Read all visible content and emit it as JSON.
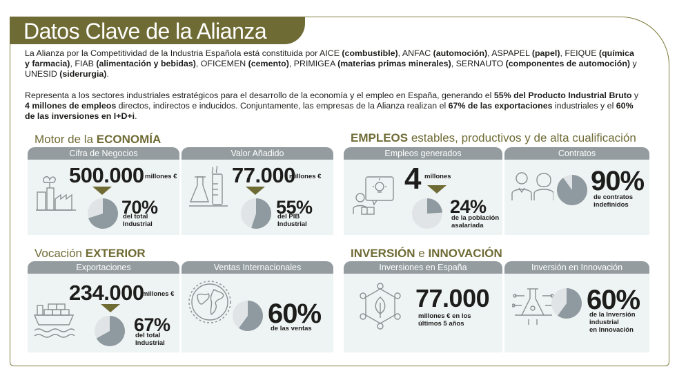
{
  "title": "Datos Clave de la Alianza",
  "intro": {
    "p1": [
      {
        "t": "La Alianza por la Competitividad de la Industria Española está constituida por AICE ",
        "b": false
      },
      {
        "t": "(combustible)",
        "b": true
      },
      {
        "t": ", ANFAC ",
        "b": false
      },
      {
        "t": "(automoción)",
        "b": true
      },
      {
        "t": ", ASPAPEL ",
        "b": false
      },
      {
        "t": "(papel)",
        "b": true
      },
      {
        "t": ", FEIQUE ",
        "b": false
      },
      {
        "t": "(química y farmacia)",
        "b": true
      },
      {
        "t": ", FIAB ",
        "b": false
      },
      {
        "t": "(alimentación y bebidas)",
        "b": true
      },
      {
        "t": ", OFICEMEN ",
        "b": false
      },
      {
        "t": "(cemento)",
        "b": true
      },
      {
        "t": ", PRIMIGEA ",
        "b": false
      },
      {
        "t": "(materias primas minerales)",
        "b": true
      },
      {
        "t": ", SERNAUTO ",
        "b": false
      },
      {
        "t": "(componentes de automoción)",
        "b": true
      },
      {
        "t": " y UNESID ",
        "b": false
      },
      {
        "t": "(siderurgia)",
        "b": true
      },
      {
        "t": ".",
        "b": false
      }
    ],
    "p2": [
      {
        "t": "Representa a los sectores industriales estratégicos para el desarrollo de la economía y el empleo en España, generando el ",
        "b": false
      },
      {
        "t": "55% del Producto Industrial Bruto",
        "b": true
      },
      {
        "t": " y ",
        "b": false
      },
      {
        "t": "4 millones de empleos",
        "b": true
      },
      {
        "t": " directos, indirectos e inducidos. Conjuntamente, las empresas de la Alianza realizan el ",
        "b": false
      },
      {
        "t": "67% de las exportaciones",
        "b": true
      },
      {
        "t": " industriales y el ",
        "b": false
      },
      {
        "t": "60% de las inversiones en I+D+i",
        "b": true
      },
      {
        "t": ".",
        "b": false
      }
    ]
  },
  "economia": {
    "title_a": "Motor de la ",
    "title_b": "ECONOMÍA",
    "cifra": {
      "tab": "Cifra de Negocios",
      "value": "500.000",
      "unit": "millones €",
      "pct": "70%",
      "pct_value": 70,
      "sub1": "del total",
      "sub2": "Industrial",
      "icon": "factory-icon"
    },
    "valor": {
      "tab": "Valor Añadido",
      "value": "77.000",
      "unit": "millones €",
      "pct": "55%",
      "pct_value": 55,
      "sub1": "del PIB",
      "sub2": "Industrial",
      "icon": "lab-flask-icon"
    }
  },
  "empleos": {
    "title_a": "EMPLEOS",
    "title_b": " estables, productivos y de alta cualificación",
    "generados": {
      "tab": "Empleos generados",
      "value": "4",
      "unit": "millones",
      "pct": "24%",
      "pct_value": 24,
      "sub1": "de la población",
      "sub2": "asalariada",
      "icon": "idea-worker-icon"
    },
    "contratos": {
      "tab": "Contratos",
      "pct": "90%",
      "pct_value": 90,
      "sub1": "de contratos",
      "sub2": "indefinidos",
      "icon": "people-icon"
    }
  },
  "exterior": {
    "title_a": "Vocación ",
    "title_b": "EXTERIOR",
    "exportaciones": {
      "tab": "Exportaciones",
      "value": "234.000",
      "unit": "millones €",
      "pct": "67%",
      "pct_value": 67,
      "sub1": "del total",
      "sub2": "Industrial",
      "icon": "cargo-ship-icon"
    },
    "ventas": {
      "tab": "Ventas Internacionales",
      "pct": "60%",
      "pct_value": 60,
      "sub1": "de las ventas",
      "icon": "globe-icon"
    }
  },
  "inversion": {
    "title_a": "INVERSIÓN",
    "title_mid": " e ",
    "title_b": "INNOVACIÓN",
    "espana": {
      "tab": "Inversiones en España",
      "value": "77.000",
      "sub1": "millones € en los",
      "sub2": "últimos 5 años",
      "icon": "network-leaf-icon"
    },
    "innovacion": {
      "tab": "Inversión en Innovación",
      "pct": "60%",
      "pct_value": 60,
      "sub1": "de la Inversión",
      "sub2": "industrial",
      "sub3": "en Innovación",
      "icon": "circuit-flask-icon"
    }
  },
  "colors": {
    "olive": "#6f6b35",
    "tab_grey": "#949ca0",
    "pie_fill": "#8f9aa0",
    "pie_bg": "#e0e4e6",
    "panel": "#eef3f3"
  }
}
